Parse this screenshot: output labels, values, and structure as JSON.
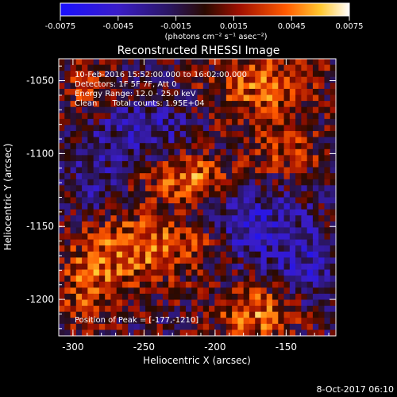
{
  "colorbar": {
    "ticks": [
      "-0.0075",
      "-0.0045",
      "-0.0015",
      "0.0015",
      "0.0045",
      "0.0075"
    ],
    "units": "(photons cm⁻² s⁻¹ asec⁻²)"
  },
  "image": {
    "title": "Reconstructed RHESSI Image",
    "info": [
      "10-Feb-2016 15:52:00.000 to 16:02:00.000",
      "Detectors: 1F 5F 7F, Att 0",
      "Energy Range: 12.0 - 25.0 keV",
      "Clean      Total counts: 1.95E+04"
    ],
    "peak": "Position of Peak = [-177,-1210]"
  },
  "footer": {
    "date": "8-Oct-2017 06:10"
  },
  "chart_data": {
    "type": "heatmap",
    "title": "Reconstructed RHESSI Image",
    "xlabel": "Heliocentric X (arcsec)",
    "ylabel": "Heliocentric Y (arcsec)",
    "xlim": [
      -310,
      -115
    ],
    "ylim": [
      -1225,
      -1035
    ],
    "xticks": [
      "-300",
      "-250",
      "-200",
      "-150"
    ],
    "xtick_values": [
      -300,
      -250,
      -200,
      -150
    ],
    "yticks": [
      "-1050",
      "-1100",
      "-1150",
      "-1200"
    ],
    "ytick_values": [
      -1050,
      -1100,
      -1150,
      -1200
    ],
    "zlim": [
      -0.0075,
      0.0075
    ],
    "grid": false,
    "colormap_colors": [
      "#1a10ff",
      "#3a1dc8",
      "#2a1660",
      "#2a0a00",
      "#a01000",
      "#ff5a00",
      "#ffc830",
      "#ffffff"
    ],
    "grid_cols": 48,
    "grid_rows": 46,
    "blobs": [
      {
        "x": -220,
        "y": -1115,
        "sx": 22,
        "sy": 12,
        "amp": 0.0048
      },
      {
        "x": -255,
        "y": -1165,
        "sx": 30,
        "sy": 18,
        "amp": 0.0042
      },
      {
        "x": -165,
        "y": -1055,
        "sx": 28,
        "sy": 18,
        "amp": 0.004
      },
      {
        "x": -150,
        "y": -1100,
        "sx": 18,
        "sy": 10,
        "amp": 0.0032
      },
      {
        "x": -170,
        "y": -1210,
        "sx": 22,
        "sy": 14,
        "amp": 0.0045
      },
      {
        "x": -290,
        "y": -1195,
        "sx": 16,
        "sy": 18,
        "amp": 0.0035
      },
      {
        "x": -290,
        "y": -1055,
        "sx": 12,
        "sy": 12,
        "amp": 0.003
      },
      {
        "x": -210,
        "y": -1160,
        "sx": 14,
        "sy": 10,
        "amp": 0.0025
      },
      {
        "x": -250,
        "y": -1085,
        "sx": 25,
        "sy": 15,
        "amp": -0.003
      },
      {
        "x": -175,
        "y": -1150,
        "sx": 25,
        "sy": 18,
        "amp": -0.0035
      },
      {
        "x": -135,
        "y": -1180,
        "sx": 15,
        "sy": 20,
        "amp": -0.003
      },
      {
        "x": -285,
        "y": -1120,
        "sx": 12,
        "sy": 15,
        "amp": -0.0025
      }
    ]
  }
}
